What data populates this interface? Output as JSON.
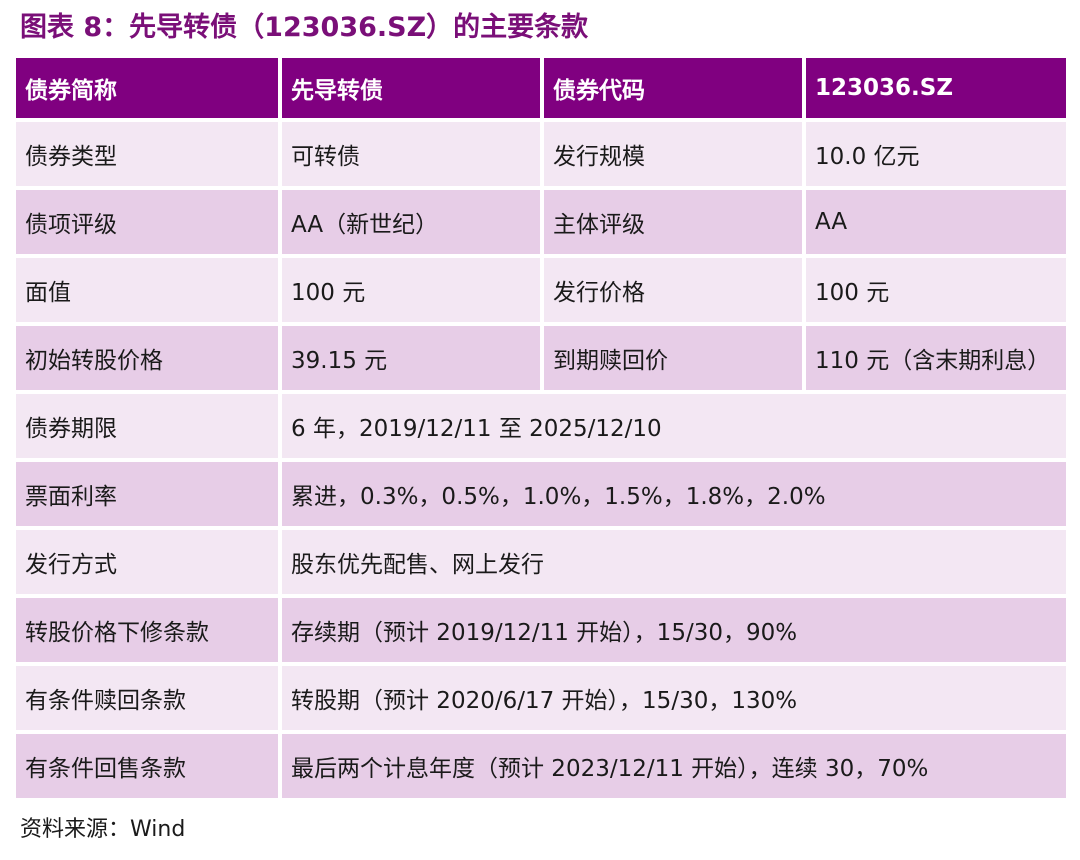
{
  "title": "图表 8：先导转债（123036.SZ）的主要条款",
  "header": {
    "c1": "债券简称",
    "c2": "先导转债",
    "c3": "债券代码",
    "c4": "123036.SZ"
  },
  "rows4": [
    {
      "l1": "债券类型",
      "v1": "可转债",
      "l2": "发行规模",
      "v2": "10.0 亿元"
    },
    {
      "l1": "债项评级",
      "v1": "AA（新世纪）",
      "l2": "主体评级",
      "v2": "AA"
    },
    {
      "l1": "面值",
      "v1": "100 元",
      "l2": "发行价格",
      "v2": "100 元"
    },
    {
      "l1": "初始转股价格",
      "v1": "39.15 元",
      "l2": "到期赎回价",
      "v2": "110 元（含末期利息）"
    }
  ],
  "rows2": [
    {
      "label": "债券期限",
      "value": "6 年，2019/12/11 至 2025/12/10"
    },
    {
      "label": "票面利率",
      "value": "累进，0.3%，0.5%，1.0%，1.5%，1.8%，2.0%"
    },
    {
      "label": "发行方式",
      "value": "股东优先配售、网上发行"
    },
    {
      "label": "转股价格下修条款",
      "value": "存续期（预计 2019/12/11 开始），15/30，90%"
    },
    {
      "label": "有条件赎回条款",
      "value": "转股期（预计 2020/6/17 开始），15/30，130%"
    },
    {
      "label": "有条件回售条款",
      "value": "最后两个计息年度（预计 2023/12/11 开始），连续 30，70%"
    }
  ],
  "source": "资料来源：Wind",
  "colors": {
    "title": "#7a0f78",
    "header_bg": "#800080",
    "row_light": "#f3e7f3",
    "row_dark": "#e7cde7"
  }
}
